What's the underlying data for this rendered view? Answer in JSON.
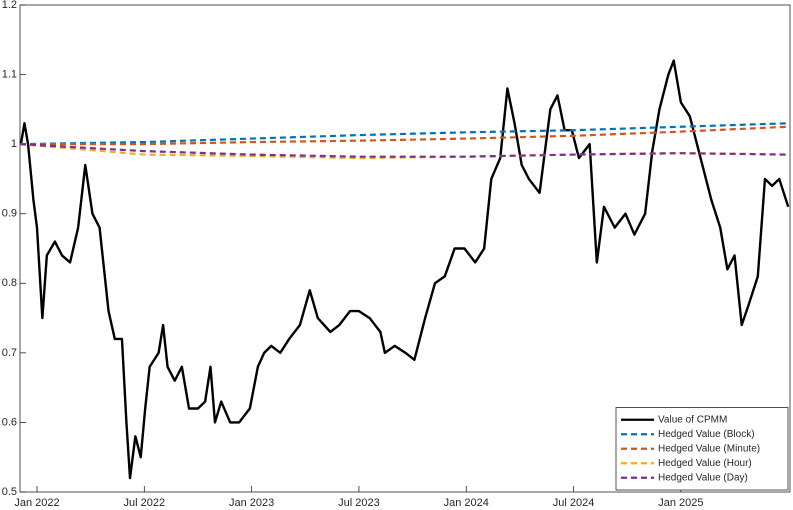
{
  "chart_data": {
    "type": "line",
    "xlim": [
      -0.95,
      42.1
    ],
    "ylim": [
      0.5,
      1.2
    ],
    "xticks": [
      {
        "value": 0,
        "label": "Jan 2022"
      },
      {
        "value": 6,
        "label": "Jul 2022"
      },
      {
        "value": 12,
        "label": "Jan 2023"
      },
      {
        "value": 18,
        "label": "Jul 2023"
      },
      {
        "value": 24,
        "label": "Jan 2024"
      },
      {
        "value": 30,
        "label": "Jul 2024"
      },
      {
        "value": 36,
        "label": "Jan 2025"
      }
    ],
    "yticks": [
      0.5,
      0.6,
      0.7,
      0.8,
      0.9,
      1,
      1.1,
      1.2
    ],
    "legend": "southeast",
    "grid": false,
    "series": [
      {
        "name": "Value of CPMM",
        "color": "#000000",
        "style": "solid",
        "x": [
          -0.9,
          -0.7,
          -0.5,
          -0.2,
          0,
          0.3,
          0.55,
          1.0,
          1.4,
          1.85,
          2.3,
          2.7,
          3.1,
          3.5,
          4.0,
          4.35,
          4.75,
          5.0,
          5.2,
          5.5,
          5.8,
          6.05,
          6.3,
          6.8,
          7.05,
          7.3,
          7.7,
          8.1,
          8.5,
          9.0,
          9.4,
          9.7,
          9.95,
          10.3,
          10.8,
          11.3,
          11.9,
          12.35,
          12.7,
          13.1,
          13.6,
          14.1,
          14.7,
          15.25,
          15.7,
          16.4,
          16.9,
          17.5,
          18.0,
          18.6,
          19.2,
          19.45,
          20.0,
          20.6,
          21.1,
          21.7,
          22.25,
          22.8,
          23.35,
          23.9,
          24.5,
          25.0,
          25.4,
          25.9,
          26.3,
          26.7,
          27.1,
          27.5,
          28.1,
          28.7,
          29.1,
          29.5,
          29.9,
          30.3,
          30.9,
          31.3,
          31.7,
          32.3,
          32.9,
          33.4,
          34.0,
          34.4,
          34.8,
          35.3,
          35.6,
          36.0,
          36.5,
          36.9,
          37.3,
          37.7,
          38.2,
          38.6,
          39.0,
          39.4,
          39.8,
          40.3,
          40.7,
          41.1,
          41.5,
          42.0
        ],
        "values": [
          1.0,
          1.03,
          1.0,
          0.92,
          0.88,
          0.75,
          0.84,
          0.86,
          0.84,
          0.83,
          0.88,
          0.97,
          0.9,
          0.88,
          0.76,
          0.72,
          0.72,
          0.6,
          0.52,
          0.58,
          0.55,
          0.62,
          0.68,
          0.7,
          0.74,
          0.68,
          0.66,
          0.68,
          0.62,
          0.62,
          0.63,
          0.68,
          0.6,
          0.63,
          0.6,
          0.6,
          0.62,
          0.68,
          0.7,
          0.71,
          0.7,
          0.72,
          0.74,
          0.79,
          0.75,
          0.73,
          0.74,
          0.76,
          0.76,
          0.75,
          0.73,
          0.7,
          0.71,
          0.7,
          0.69,
          0.75,
          0.8,
          0.81,
          0.85,
          0.85,
          0.83,
          0.85,
          0.95,
          0.98,
          1.08,
          1.03,
          0.97,
          0.95,
          0.93,
          1.05,
          1.07,
          1.02,
          1.02,
          0.98,
          1.0,
          0.83,
          0.91,
          0.88,
          0.9,
          0.87,
          0.9,
          0.99,
          1.05,
          1.1,
          1.12,
          1.06,
          1.04,
          1.0,
          0.96,
          0.92,
          0.88,
          0.82,
          0.84,
          0.74,
          0.77,
          0.81,
          0.95,
          0.94,
          0.95,
          0.91
        ]
      },
      {
        "name": "Hedged Value (Block)",
        "color": "#0072BD",
        "style": "dashed",
        "x": [
          -0.95,
          6,
          12,
          18,
          24,
          30,
          36,
          42
        ],
        "values": [
          1.0,
          1.003,
          1.008,
          1.013,
          1.017,
          1.02,
          1.025,
          1.03
        ]
      },
      {
        "name": "Hedged Value (Minute)",
        "color": "#D95319",
        "style": "dashed",
        "x": [
          -0.95,
          6,
          12,
          18,
          24,
          30,
          36,
          42
        ],
        "values": [
          1.0,
          1.0,
          1.003,
          1.005,
          1.008,
          1.012,
          1.018,
          1.025
        ]
      },
      {
        "name": "Hedged Value (Hour)",
        "color": "#EDB120",
        "style": "dashed",
        "x": [
          -0.95,
          6,
          12,
          18,
          24,
          30,
          36,
          42
        ],
        "values": [
          1.0,
          0.985,
          0.983,
          0.98,
          0.982,
          0.985,
          0.987,
          0.985
        ]
      },
      {
        "name": "Hedged Value (Day)",
        "color": "#7E2F8E",
        "style": "dashed",
        "x": [
          -0.95,
          6,
          12,
          18,
          24,
          30,
          36,
          42
        ],
        "values": [
          1.0,
          0.99,
          0.985,
          0.982,
          0.982,
          0.985,
          0.987,
          0.985
        ]
      }
    ]
  }
}
